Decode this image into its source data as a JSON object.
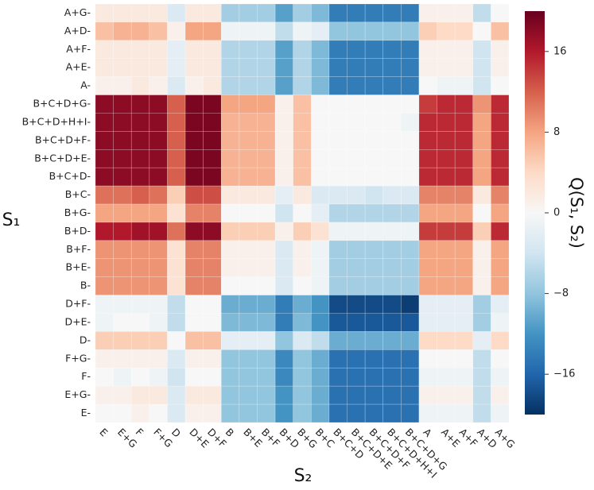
{
  "chart_data": {
    "type": "heatmap",
    "title": "",
    "xlabel": "S₂",
    "ylabel": "S₁",
    "colorbar_label": "Q(S₁, S₂)",
    "colorbar_ticks": [
      -16,
      -8,
      0,
      8,
      16
    ],
    "colorbar_tick_labels": [
      "−16",
      "−8",
      "0",
      "8",
      "16"
    ],
    "vmin": -20,
    "vmax": 20,
    "colormap": "RdBu_r",
    "colors": {
      "min": "#053061",
      "mid": "#f7f7f7",
      "max": "#67001f"
    },
    "x_categories": [
      "E",
      "E+G",
      "F",
      "F+G",
      "D",
      "D+E",
      "D+F",
      "B",
      "B+E",
      "B+F",
      "B+D",
      "B+G",
      "B+C",
      "B+C+D",
      "B+C+D+E",
      "B+C+D+F",
      "B+C+D+H+I",
      "B+C+D+G",
      "A",
      "A+E",
      "A+F",
      "A+D",
      "A+G"
    ],
    "y_categories": [
      "A+G",
      "A+D",
      "A+F",
      "A+E",
      "A",
      "B+C+D+G",
      "B+C+D+H+I",
      "B+C+D+F",
      "B+C+D+E",
      "B+C+D",
      "B+C",
      "B+G",
      "B+D",
      "B+F",
      "B+E",
      "B",
      "D+F",
      "D+E",
      "D",
      "F+G",
      "F",
      "E+G",
      "E"
    ],
    "values": [
      [
        2,
        2,
        2,
        2,
        -3,
        2,
        2,
        -7,
        -7,
        -7,
        -11,
        -7,
        -9,
        -14,
        -14,
        -14,
        -14,
        -14,
        1,
        1,
        1,
        -5,
        0
      ],
      [
        6,
        7,
        7,
        6,
        1,
        8,
        8,
        -1,
        -1,
        -1,
        -5,
        -1,
        -2,
        -8,
        -8,
        -8,
        -8,
        -8,
        5,
        4,
        4,
        0,
        6
      ],
      [
        2,
        2,
        2,
        2,
        -2,
        2,
        2,
        -6,
        -6,
        -6,
        -11,
        -6,
        -9,
        -14,
        -14,
        -14,
        -14,
        -14,
        1,
        1,
        1,
        -4,
        1
      ],
      [
        2,
        2,
        2,
        2,
        -2,
        2,
        2,
        -6,
        -6,
        -6,
        -11,
        -6,
        -9,
        -14,
        -14,
        -14,
        -14,
        -14,
        1,
        1,
        1,
        -4,
        1
      ],
      [
        1,
        1,
        2,
        1,
        -3,
        1,
        2,
        -6,
        -6,
        -6,
        -11,
        -6,
        -9,
        -14,
        -14,
        -14,
        -14,
        -14,
        0,
        -1,
        -1,
        -4,
        0
      ],
      [
        18,
        18,
        18,
        18,
        12,
        19,
        19,
        8,
        8,
        8,
        1,
        6,
        0,
        0,
        0,
        0,
        0,
        0,
        14,
        15,
        15,
        9,
        15
      ],
      [
        18,
        18,
        18,
        18,
        12,
        19,
        19,
        7,
        7,
        7,
        1,
        6,
        0,
        0,
        0,
        0,
        0,
        -1,
        15,
        15,
        15,
        8,
        15
      ],
      [
        18,
        18,
        18,
        18,
        12,
        19,
        19,
        7,
        7,
        7,
        1,
        6,
        0,
        0,
        0,
        0,
        0,
        0,
        15,
        15,
        15,
        8,
        15
      ],
      [
        18,
        18,
        18,
        18,
        12,
        19,
        19,
        7,
        7,
        7,
        1,
        6,
        0,
        0,
        0,
        0,
        0,
        0,
        15,
        15,
        15,
        8,
        15
      ],
      [
        18,
        18,
        18,
        18,
        12,
        19,
        19,
        7,
        7,
        7,
        1,
        6,
        0,
        0,
        0,
        0,
        0,
        0,
        15,
        15,
        15,
        8,
        15
      ],
      [
        11,
        11,
        12,
        11,
        5,
        13,
        13,
        2,
        2,
        2,
        -2,
        2,
        -3,
        -3,
        -3,
        -4,
        -3,
        -3,
        10,
        10,
        10,
        2,
        10
      ],
      [
        8,
        8,
        8,
        8,
        3,
        10,
        10,
        0,
        0,
        0,
        -4,
        0,
        -2,
        -6,
        -6,
        -6,
        -6,
        -6,
        8,
        8,
        8,
        0,
        8
      ],
      [
        16,
        16,
        17,
        17,
        11,
        18,
        18,
        5,
        5,
        5,
        1,
        5,
        3,
        -1,
        -1,
        -1,
        -1,
        -1,
        14,
        14,
        14,
        5,
        15
      ],
      [
        9,
        9,
        9,
        9,
        3,
        10,
        10,
        1,
        1,
        1,
        -3,
        1,
        -1,
        -7,
        -7,
        -7,
        -7,
        -7,
        8,
        8,
        8,
        1,
        8
      ],
      [
        9,
        9,
        9,
        9,
        3,
        10,
        10,
        1,
        1,
        1,
        -3,
        1,
        -1,
        -7,
        -7,
        -7,
        -7,
        -7,
        8,
        8,
        8,
        1,
        8
      ],
      [
        9,
        9,
        9,
        9,
        3,
        10,
        10,
        0,
        0,
        0,
        -3,
        0,
        -1,
        -7,
        -7,
        -7,
        -7,
        -7,
        8,
        8,
        8,
        1,
        8
      ],
      [
        -1,
        -1,
        -1,
        -1,
        -5,
        0,
        0,
        -10,
        -10,
        -10,
        -14,
        -10,
        -12,
        -18,
        -18,
        -18,
        -18,
        -19,
        -2,
        -2,
        -2,
        -7,
        -2
      ],
      [
        -1,
        0,
        0,
        -1,
        -5,
        0,
        0,
        -9,
        -9,
        -9,
        -14,
        -9,
        -12,
        -17,
        -17,
        -17,
        -17,
        -17,
        -2,
        -2,
        -2,
        -7,
        -1
      ],
      [
        5,
        5,
        5,
        5,
        0,
        6,
        6,
        -2,
        -2,
        -2,
        -8,
        -3,
        -5,
        -10,
        -10,
        -10,
        -10,
        -10,
        4,
        4,
        4,
        -2,
        4
      ],
      [
        1,
        1,
        1,
        1,
        -3,
        1,
        1,
        -8,
        -8,
        -8,
        -13,
        -8,
        -10,
        -15,
        -15,
        -15,
        -15,
        -15,
        0,
        0,
        0,
        -5,
        0
      ],
      [
        0,
        -1,
        0,
        -1,
        -4,
        0,
        0,
        -8,
        -8,
        -8,
        -13,
        -8,
        -10,
        -15,
        -15,
        -15,
        -15,
        -15,
        -1,
        -1,
        -1,
        -5,
        -1
      ],
      [
        1,
        1,
        2,
        2,
        -3,
        2,
        2,
        -8,
        -8,
        -8,
        -12,
        -8,
        -10,
        -15,
        -15,
        -15,
        -15,
        -15,
        1,
        1,
        1,
        -5,
        1
      ],
      [
        0,
        0,
        1,
        0,
        -3,
        1,
        1,
        -8,
        -8,
        -8,
        -12,
        -8,
        -10,
        -15,
        -15,
        -15,
        -15,
        -15,
        -1,
        -1,
        -1,
        -5,
        -1
      ]
    ]
  }
}
